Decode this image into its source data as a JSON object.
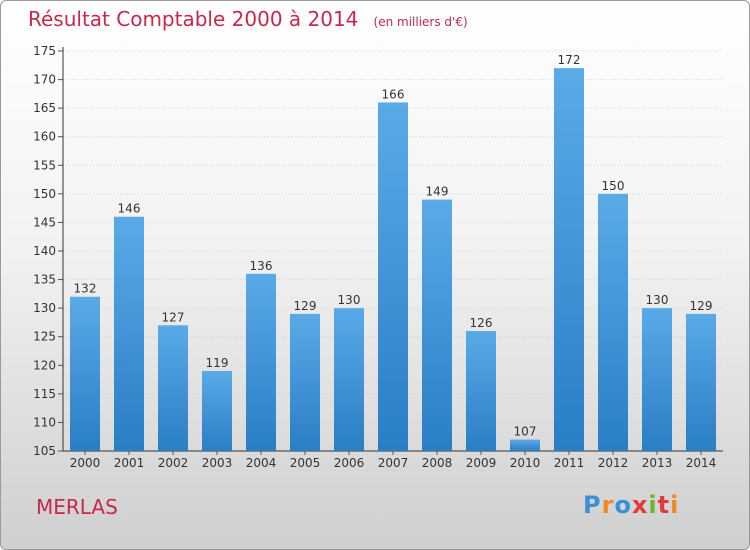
{
  "header": {
    "title": "Résultat Comptable 2000 à 2014",
    "subtitle": "(en milliers d'€)"
  },
  "footer": {
    "commune": "MERLAS",
    "logo_text": "Proxiti"
  },
  "colors": {
    "title": "#c8284a",
    "bar_top": "#5aaae8",
    "bar_bottom": "#2a7ec4"
  },
  "chart_data": {
    "type": "bar",
    "title": "Résultat Comptable 2000 à 2014",
    "subtitle": "(en milliers d'€)",
    "categories": [
      "2000",
      "2001",
      "2002",
      "2003",
      "2004",
      "2005",
      "2006",
      "2007",
      "2008",
      "2009",
      "2010",
      "2011",
      "2012",
      "2013",
      "2014"
    ],
    "values": [
      132,
      146,
      127,
      119,
      136,
      129,
      130,
      166,
      149,
      126,
      107,
      172,
      150,
      130,
      129
    ],
    "ylim": [
      105,
      175
    ],
    "yticks": [
      105,
      110,
      115,
      120,
      125,
      130,
      135,
      140,
      145,
      150,
      155,
      160,
      165,
      170,
      175
    ],
    "grid": true,
    "legend": "none",
    "data_labels": true
  }
}
